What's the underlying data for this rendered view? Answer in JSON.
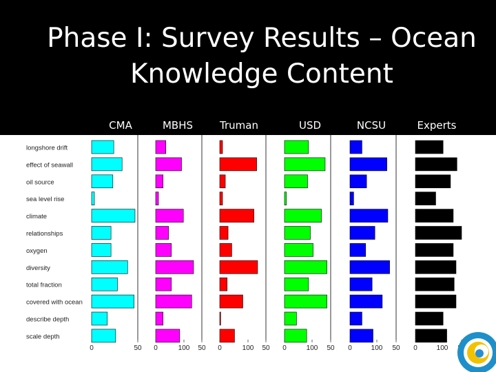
{
  "slide": {
    "title_line1": "Phase I: Survey Results – Ocean",
    "title_line2": "Knowledge Content"
  },
  "groups": [
    "CMA",
    "MBHS",
    "Truman",
    "USD",
    "NCSU",
    "Experts"
  ],
  "chart_data": {
    "type": "bar",
    "orientation": "horizontal",
    "categories": [
      "longshore drift",
      "effect of seawall",
      "oil source",
      "sea level rise",
      "climate",
      "relationships",
      "oxygen",
      "diversity",
      "total fraction",
      "covered with ocean",
      "describe depth",
      "scale depth"
    ],
    "xlim": [
      0,
      100
    ],
    "xticks": [
      0,
      50,
      100
    ],
    "panels": [
      {
        "name": "CMA",
        "color": "#00ffff",
        "values": [
          24,
          33,
          23,
          3,
          47,
          21,
          21,
          39,
          28,
          46,
          17,
          26
        ]
      },
      {
        "name": "MBHS",
        "color": "#ff00ff",
        "values": [
          11,
          28,
          8,
          3,
          30,
          14,
          17,
          41,
          17,
          39,
          8,
          26
        ]
      },
      {
        "name": "Truman",
        "color": "#ff0000",
        "values": [
          3,
          40,
          6,
          3,
          37,
          9,
          13,
          41,
          8,
          25,
          1,
          16
        ]
      },
      {
        "name": "USD",
        "color": "#00ff00",
        "values": [
          26,
          44,
          25,
          2,
          40,
          28,
          31,
          46,
          26,
          46,
          13,
          24
        ]
      },
      {
        "name": "NCSU",
        "color": "#0000ff",
        "values": [
          13,
          40,
          18,
          4,
          41,
          27,
          17,
          43,
          24,
          35,
          13,
          25
        ]
      },
      {
        "name": "Experts",
        "color": "#000000",
        "values": [
          30,
          45,
          38,
          22,
          41,
          50,
          41,
          44,
          42,
          44,
          30,
          34
        ]
      }
    ]
  }
}
